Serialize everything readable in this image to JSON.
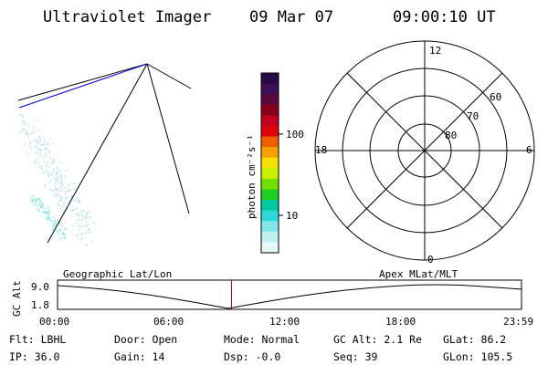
{
  "header": {
    "instrument": "Ultraviolet Imager",
    "date": "09 Mar 07",
    "time": "09:00:10 UT"
  },
  "colorbar": {
    "unit_label": "photon cm⁻²s⁻¹",
    "tick_labels": [
      "100",
      "10"
    ],
    "colors_top_to_bottom": [
      "#2a0b4a",
      "#3c0f57",
      "#5a0a3a",
      "#8a0018",
      "#c0001c",
      "#e00010",
      "#f06000",
      "#f8a000",
      "#f8e000",
      "#c8f000",
      "#70e000",
      "#20d020",
      "#00c8a0",
      "#30d8d8",
      "#80e8e8",
      "#c0f0f0",
      "#e8f8f8"
    ]
  },
  "polar": {
    "mlt_labels": [
      "12",
      "18",
      "6",
      "0"
    ],
    "lat_labels": [
      "60",
      "70",
      "80"
    ]
  },
  "timeline": {
    "y_axis_label": "GC Alt",
    "y_ticks": [
      "9.0",
      "1.8"
    ],
    "left_title": "Geographic Lat/Lon",
    "right_title": "Apex  MLat/MLT",
    "x_ticks": [
      "00:00",
      "06:00",
      "12:00",
      "18:00",
      "23:59"
    ],
    "marker_time": "09:00",
    "marker_color": "#c00000"
  },
  "footer": {
    "row1": [
      "Flt: LBHL",
      "Door: Open",
      "Mode: Normal",
      "GC Alt: 2.1 Re",
      "GLat:  86.2"
    ],
    "row2": [
      "IP: 36.0",
      "Gain: 14",
      "Dsp:   -0.0",
      "Seq: 39",
      "GLon: 105.5"
    ]
  }
}
